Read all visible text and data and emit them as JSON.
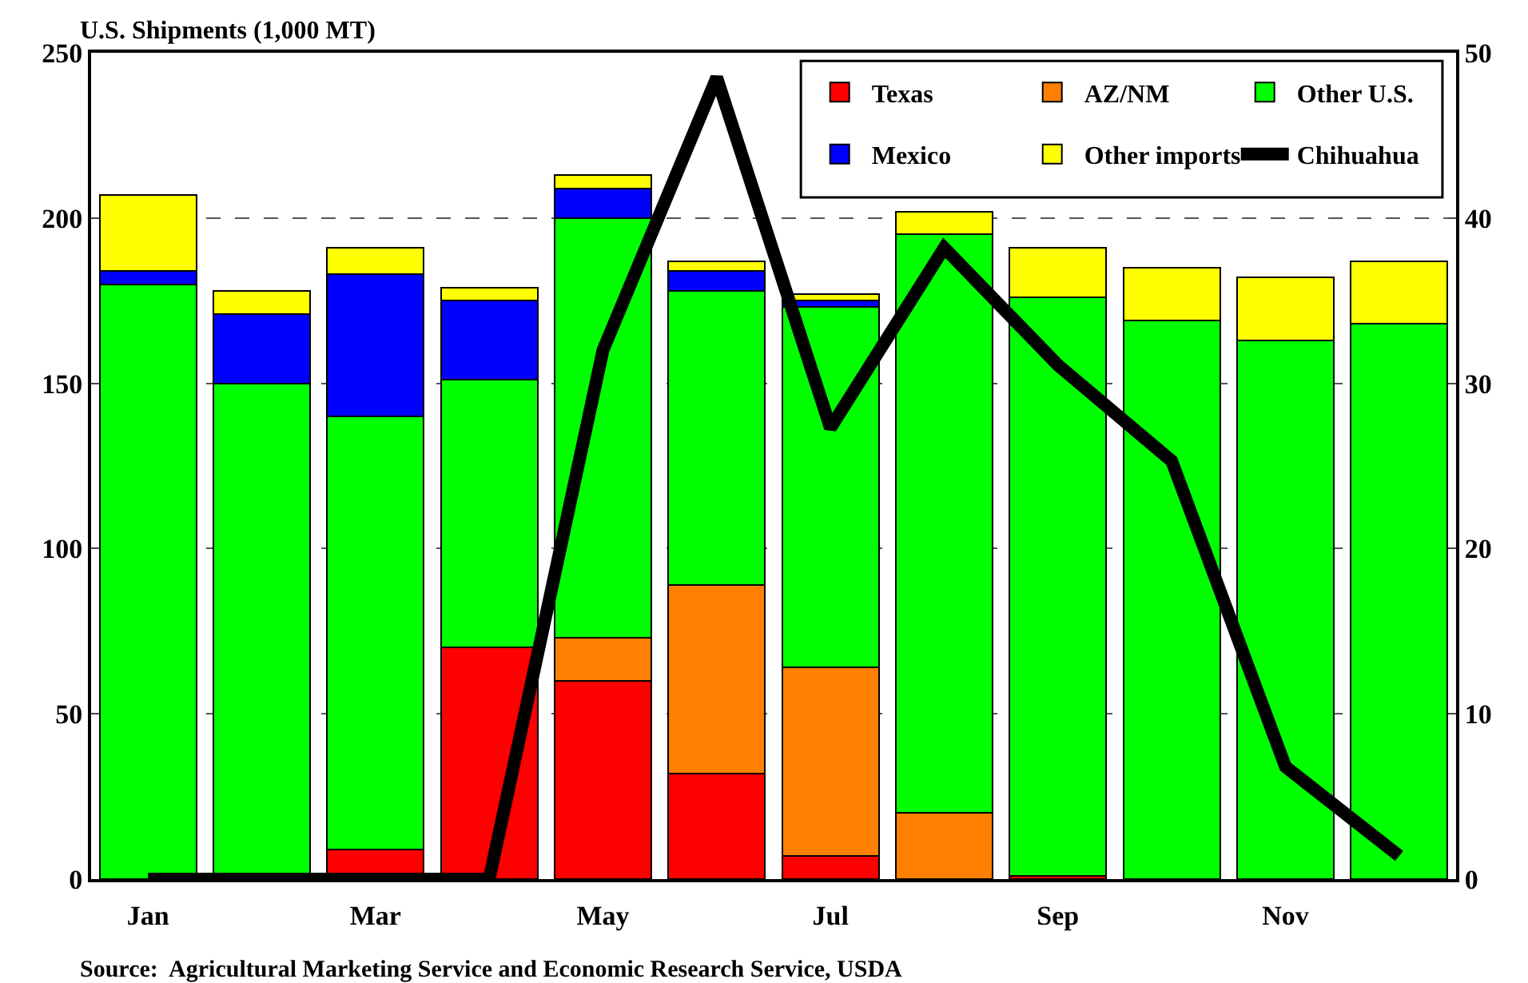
{
  "chart_data": {
    "type": "bar",
    "stacked": true,
    "ylabel": "U.S. Shipments (1,000 MT)",
    "categories": [
      "Jan",
      null,
      "Mar",
      null,
      "May",
      null,
      "Jul",
      null,
      "Sep",
      null,
      "Nov",
      null
    ],
    "series": [
      {
        "name": "Texas",
        "color": "#ff0000",
        "values": [
          0,
          0,
          9,
          70,
          60,
          32,
          7,
          0,
          1,
          0,
          0,
          0
        ]
      },
      {
        "name": "AZ/NM",
        "color": "#ff8000",
        "values": [
          0,
          0,
          0,
          0,
          13,
          57,
          57,
          20,
          0,
          0,
          0,
          0
        ]
      },
      {
        "name": "Other U.S.",
        "color": "#00ff00",
        "values": [
          180,
          150,
          131,
          81,
          127,
          89,
          109,
          175,
          175,
          169,
          163,
          168
        ]
      },
      {
        "name": "Mexico",
        "color": "#0000ff",
        "values": [
          4,
          21,
          43,
          24,
          9,
          6,
          2,
          0,
          0,
          0,
          0,
          0
        ]
      },
      {
        "name": "Other imports",
        "color": "#ffff00",
        "values": [
          23,
          7,
          8,
          4,
          4,
          3,
          2,
          7,
          15,
          16,
          19,
          19
        ]
      },
      {
        "name": "Chihuahua",
        "type": "line",
        "axis": "y2",
        "color": "#000000",
        "values": [
          0,
          0,
          0,
          0,
          32,
          48.5,
          27.3,
          38.2,
          31.1,
          25.3,
          6.8,
          1.4
        ]
      }
    ],
    "ylim": [
      0,
      250
    ],
    "yticks": [
      0,
      50,
      100,
      150,
      200,
      250
    ],
    "y2lim": [
      0,
      50
    ],
    "y2ticks": [
      0,
      10,
      20,
      30,
      40,
      50
    ],
    "grid": "y",
    "line_style": "solid",
    "marker": "none",
    "legend": "top right",
    "annotations": [
      "Source:  Agricultural Marketing Service and Economic Research Service, USDA"
    ]
  }
}
